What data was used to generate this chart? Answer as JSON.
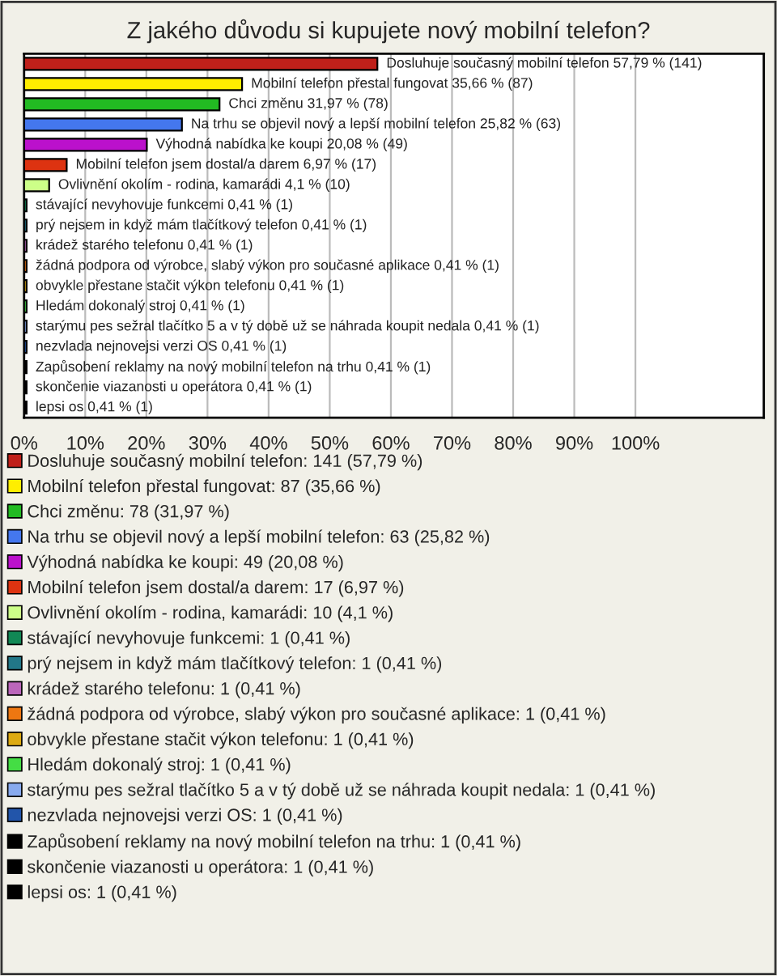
{
  "chart_data": {
    "type": "bar",
    "orientation": "horizontal",
    "title": "Z jakého důvodu si kupujete nový mobilní telefon?",
    "categories": [
      null,
      null,
      null,
      null,
      null,
      null,
      null,
      null,
      null,
      null,
      null,
      null,
      null,
      null,
      null,
      null,
      null,
      null
    ],
    "series": [
      {
        "name": "Dosluhuje současný mobilní telefon: 141 (57,79 %)",
        "color": "#c0201a",
        "values": [
          57.79,
          null,
          null,
          null,
          null,
          null,
          null,
          null,
          null,
          null,
          null,
          null,
          null,
          null,
          null,
          null,
          null,
          null
        ],
        "value_labels": [
          "Dosluhuje současný mobilní telefon 57,79 % (141)",
          null,
          null,
          null,
          null,
          null,
          null,
          null,
          null,
          null,
          null,
          null,
          null,
          null,
          null,
          null,
          null,
          null
        ]
      },
      {
        "name": "Mobilní telefon přestal fungovat: 87 (35,66 %)",
        "color": "#ffee00",
        "values": [
          null,
          35.66,
          null,
          null,
          null,
          null,
          null,
          null,
          null,
          null,
          null,
          null,
          null,
          null,
          null,
          null,
          null,
          null
        ],
        "value_labels": [
          null,
          "Mobilní telefon přestal fungovat 35,66 % (87)",
          null,
          null,
          null,
          null,
          null,
          null,
          null,
          null,
          null,
          null,
          null,
          null,
          null,
          null,
          null,
          null
        ]
      },
      {
        "name": "Chci změnu: 78 (31,97 %)",
        "color": "#22bb22",
        "values": [
          null,
          null,
          31.97,
          null,
          null,
          null,
          null,
          null,
          null,
          null,
          null,
          null,
          null,
          null,
          null,
          null,
          null,
          null
        ],
        "value_labels": [
          null,
          null,
          "Chci změnu 31,97 % (78)",
          null,
          null,
          null,
          null,
          null,
          null,
          null,
          null,
          null,
          null,
          null,
          null,
          null,
          null,
          null
        ]
      },
      {
        "name": "Na trhu se objevil nový a lepší mobilní telefon: 63 (25,82 %)",
        "color": "#4477ee",
        "values": [
          null,
          null,
          null,
          25.82,
          null,
          null,
          null,
          null,
          null,
          null,
          null,
          null,
          null,
          null,
          null,
          null,
          null,
          null
        ],
        "value_labels": [
          null,
          null,
          null,
          "Na trhu se objevil nový a lepší mobilní telefon 25,82 % (63)",
          null,
          null,
          null,
          null,
          null,
          null,
          null,
          null,
          null,
          null,
          null,
          null,
          null,
          null
        ]
      },
      {
        "name": "Výhodná nabídka ke koupi: 49 (20,08 %)",
        "color": "#bb11cc",
        "values": [
          null,
          null,
          null,
          null,
          20.08,
          null,
          null,
          null,
          null,
          null,
          null,
          null,
          null,
          null,
          null,
          null,
          null,
          null
        ],
        "value_labels": [
          null,
          null,
          null,
          null,
          "Výhodná nabídka ke koupi 20,08 % (49)",
          null,
          null,
          null,
          null,
          null,
          null,
          null,
          null,
          null,
          null,
          null,
          null,
          null
        ]
      },
      {
        "name": "Mobilní telefon jsem dostal/a darem: 17 (6,97 %)",
        "color": "#dd3311",
        "values": [
          null,
          null,
          null,
          null,
          null,
          6.97,
          null,
          null,
          null,
          null,
          null,
          null,
          null,
          null,
          null,
          null,
          null,
          null
        ],
        "value_labels": [
          null,
          null,
          null,
          null,
          null,
          "Mobilní telefon jsem dostal/a darem 6,97 % (17)",
          null,
          null,
          null,
          null,
          null,
          null,
          null,
          null,
          null,
          null,
          null,
          null
        ]
      },
      {
        "name": "Ovlivnění okolím - rodina, kamarádi: 10 (4,1 %)",
        "color": "#ccff88",
        "values": [
          null,
          null,
          null,
          null,
          null,
          null,
          4.1,
          null,
          null,
          null,
          null,
          null,
          null,
          null,
          null,
          null,
          null,
          null
        ],
        "value_labels": [
          null,
          null,
          null,
          null,
          null,
          null,
          "Ovlivnění okolím - rodina, kamarádi 4,1 % (10)",
          null,
          null,
          null,
          null,
          null,
          null,
          null,
          null,
          null,
          null,
          null
        ]
      },
      {
        "name": "stávající nevyhovuje funkcemi: 1 (0,41 %)",
        "color": "#118855",
        "values": [
          null,
          null,
          null,
          null,
          null,
          null,
          null,
          0.41,
          null,
          null,
          null,
          null,
          null,
          null,
          null,
          null,
          null,
          null
        ],
        "value_labels": [
          null,
          null,
          null,
          null,
          null,
          null,
          null,
          "stávající nevyhovuje funkcemi 0,41 % (1)",
          null,
          null,
          null,
          null,
          null,
          null,
          null,
          null,
          null,
          null
        ]
      },
      {
        "name": "prý nejsem in když mám tlačítkový telefon: 1 (0,41 %)",
        "color": "#227788",
        "values": [
          null,
          null,
          null,
          null,
          null,
          null,
          null,
          null,
          0.41,
          null,
          null,
          null,
          null,
          null,
          null,
          null,
          null,
          null
        ],
        "value_labels": [
          null,
          null,
          null,
          null,
          null,
          null,
          null,
          null,
          "prý nejsem in když mám tlačítkový telefon 0,41 % (1)",
          null,
          null,
          null,
          null,
          null,
          null,
          null,
          null,
          null
        ]
      },
      {
        "name": "krádež starého telefonu: 1 (0,41 %)",
        "color": "#bb66bb",
        "values": [
          null,
          null,
          null,
          null,
          null,
          null,
          null,
          null,
          null,
          0.41,
          null,
          null,
          null,
          null,
          null,
          null,
          null,
          null
        ],
        "value_labels": [
          null,
          null,
          null,
          null,
          null,
          null,
          null,
          null,
          null,
          "krádež starého telefonu 0,41 % (1)",
          null,
          null,
          null,
          null,
          null,
          null,
          null,
          null
        ]
      },
      {
        "name": "žádná podpora od výrobce, slabý výkon pro současné aplikace: 1 (0,41 %)",
        "color": "#ee7711",
        "values": [
          null,
          null,
          null,
          null,
          null,
          null,
          null,
          null,
          null,
          null,
          0.41,
          null,
          null,
          null,
          null,
          null,
          null,
          null
        ],
        "value_labels": [
          null,
          null,
          null,
          null,
          null,
          null,
          null,
          null,
          null,
          null,
          "žádná podpora od výrobce, slabý výkon pro současné aplikace 0,41 % (1)",
          null,
          null,
          null,
          null,
          null,
          null,
          null
        ]
      },
      {
        "name": "obvykle přestane stačit výkon telefonu: 1 (0,41 %)",
        "color": "#ddaa11",
        "values": [
          null,
          null,
          null,
          null,
          null,
          null,
          null,
          null,
          null,
          null,
          null,
          0.41,
          null,
          null,
          null,
          null,
          null,
          null
        ],
        "value_labels": [
          null,
          null,
          null,
          null,
          null,
          null,
          null,
          null,
          null,
          null,
          null,
          "obvykle přestane stačit výkon telefonu 0,41 % (1)",
          null,
          null,
          null,
          null,
          null,
          null
        ]
      },
      {
        "name": "Hledám dokonalý stroj: 1 (0,41 %)",
        "color": "#44dd44",
        "values": [
          null,
          null,
          null,
          null,
          null,
          null,
          null,
          null,
          null,
          null,
          null,
          null,
          0.41,
          null,
          null,
          null,
          null,
          null
        ],
        "value_labels": [
          null,
          null,
          null,
          null,
          null,
          null,
          null,
          null,
          null,
          null,
          null,
          null,
          "Hledám dokonalý stroj 0,41 % (1)",
          null,
          null,
          null,
          null,
          null
        ]
      },
      {
        "name": "starýmu pes sežral tlačítko 5 a v tý době už se náhrada koupit nedala: 1 (0,41 %)",
        "color": "#88aaee",
        "values": [
          null,
          null,
          null,
          null,
          null,
          null,
          null,
          null,
          null,
          null,
          null,
          null,
          null,
          0.41,
          null,
          null,
          null,
          null
        ],
        "value_labels": [
          null,
          null,
          null,
          null,
          null,
          null,
          null,
          null,
          null,
          null,
          null,
          null,
          null,
          "starýmu pes sežral tlačítko 5 a v tý době už se náhrada koupit nedala 0,41 % (1)",
          null,
          null,
          null,
          null
        ]
      },
      {
        "name": "nezvlada nejnovejsi verzi OS: 1 (0,41 %)",
        "color": "#2255aa",
        "values": [
          null,
          null,
          null,
          null,
          null,
          null,
          null,
          null,
          null,
          null,
          null,
          null,
          null,
          null,
          0.41,
          null,
          null,
          null
        ],
        "value_labels": [
          null,
          null,
          null,
          null,
          null,
          null,
          null,
          null,
          null,
          null,
          null,
          null,
          null,
          null,
          "nezvlada nejnovejsi verzi OS 0,41 % (1)",
          null,
          null,
          null
        ]
      },
      {
        "name": "Zapůsobení reklamy na nový mobilní telefon na trhu: 1 (0,41 %)",
        "color": "#000000",
        "values": [
          null,
          null,
          null,
          null,
          null,
          null,
          null,
          null,
          null,
          null,
          null,
          null,
          null,
          null,
          null,
          0.41,
          null,
          null
        ],
        "value_labels": [
          null,
          null,
          null,
          null,
          null,
          null,
          null,
          null,
          null,
          null,
          null,
          null,
          null,
          null,
          null,
          "Zapůsobení reklamy na nový mobilní telefon na trhu 0,41 % (1)",
          null,
          null
        ]
      },
      {
        "name": "skončenie viazanosti u operátora: 1 (0,41 %)",
        "color": "#000000",
        "values": [
          null,
          null,
          null,
          null,
          null,
          null,
          null,
          null,
          null,
          null,
          null,
          null,
          null,
          null,
          null,
          null,
          0.41,
          null
        ],
        "value_labels": [
          null,
          null,
          null,
          null,
          null,
          null,
          null,
          null,
          null,
          null,
          null,
          null,
          null,
          null,
          null,
          null,
          "skončenie viazanosti u operátora 0,41 % (1)",
          null
        ]
      },
      {
        "name": "lepsi os: 1 (0,41 %)",
        "color": "#000000",
        "values": [
          null,
          null,
          null,
          null,
          null,
          null,
          null,
          null,
          null,
          null,
          null,
          null,
          null,
          null,
          null,
          null,
          null,
          0.41
        ],
        "value_labels": [
          null,
          null,
          null,
          null,
          null,
          null,
          null,
          null,
          null,
          null,
          null,
          null,
          null,
          null,
          null,
          null,
          null,
          "lepsi os 0,41 % (1)"
        ]
      }
    ],
    "xlim": [
      0,
      121
    ],
    "xticks": [
      {
        "value": 0,
        "label": "0%"
      },
      {
        "value": 10,
        "label": "10%"
      },
      {
        "value": 20,
        "label": "20%"
      },
      {
        "value": 30,
        "label": "30%"
      },
      {
        "value": 40,
        "label": "40%"
      },
      {
        "value": 50,
        "label": "50%"
      },
      {
        "value": 60,
        "label": "60%"
      },
      {
        "value": 70,
        "label": "70%"
      },
      {
        "value": 80,
        "label": "80%"
      },
      {
        "value": 90,
        "label": "90%"
      },
      {
        "value": 100,
        "label": "100%"
      }
    ],
    "grid": "x",
    "legend": "bottom",
    "tick_labels": "x"
  }
}
